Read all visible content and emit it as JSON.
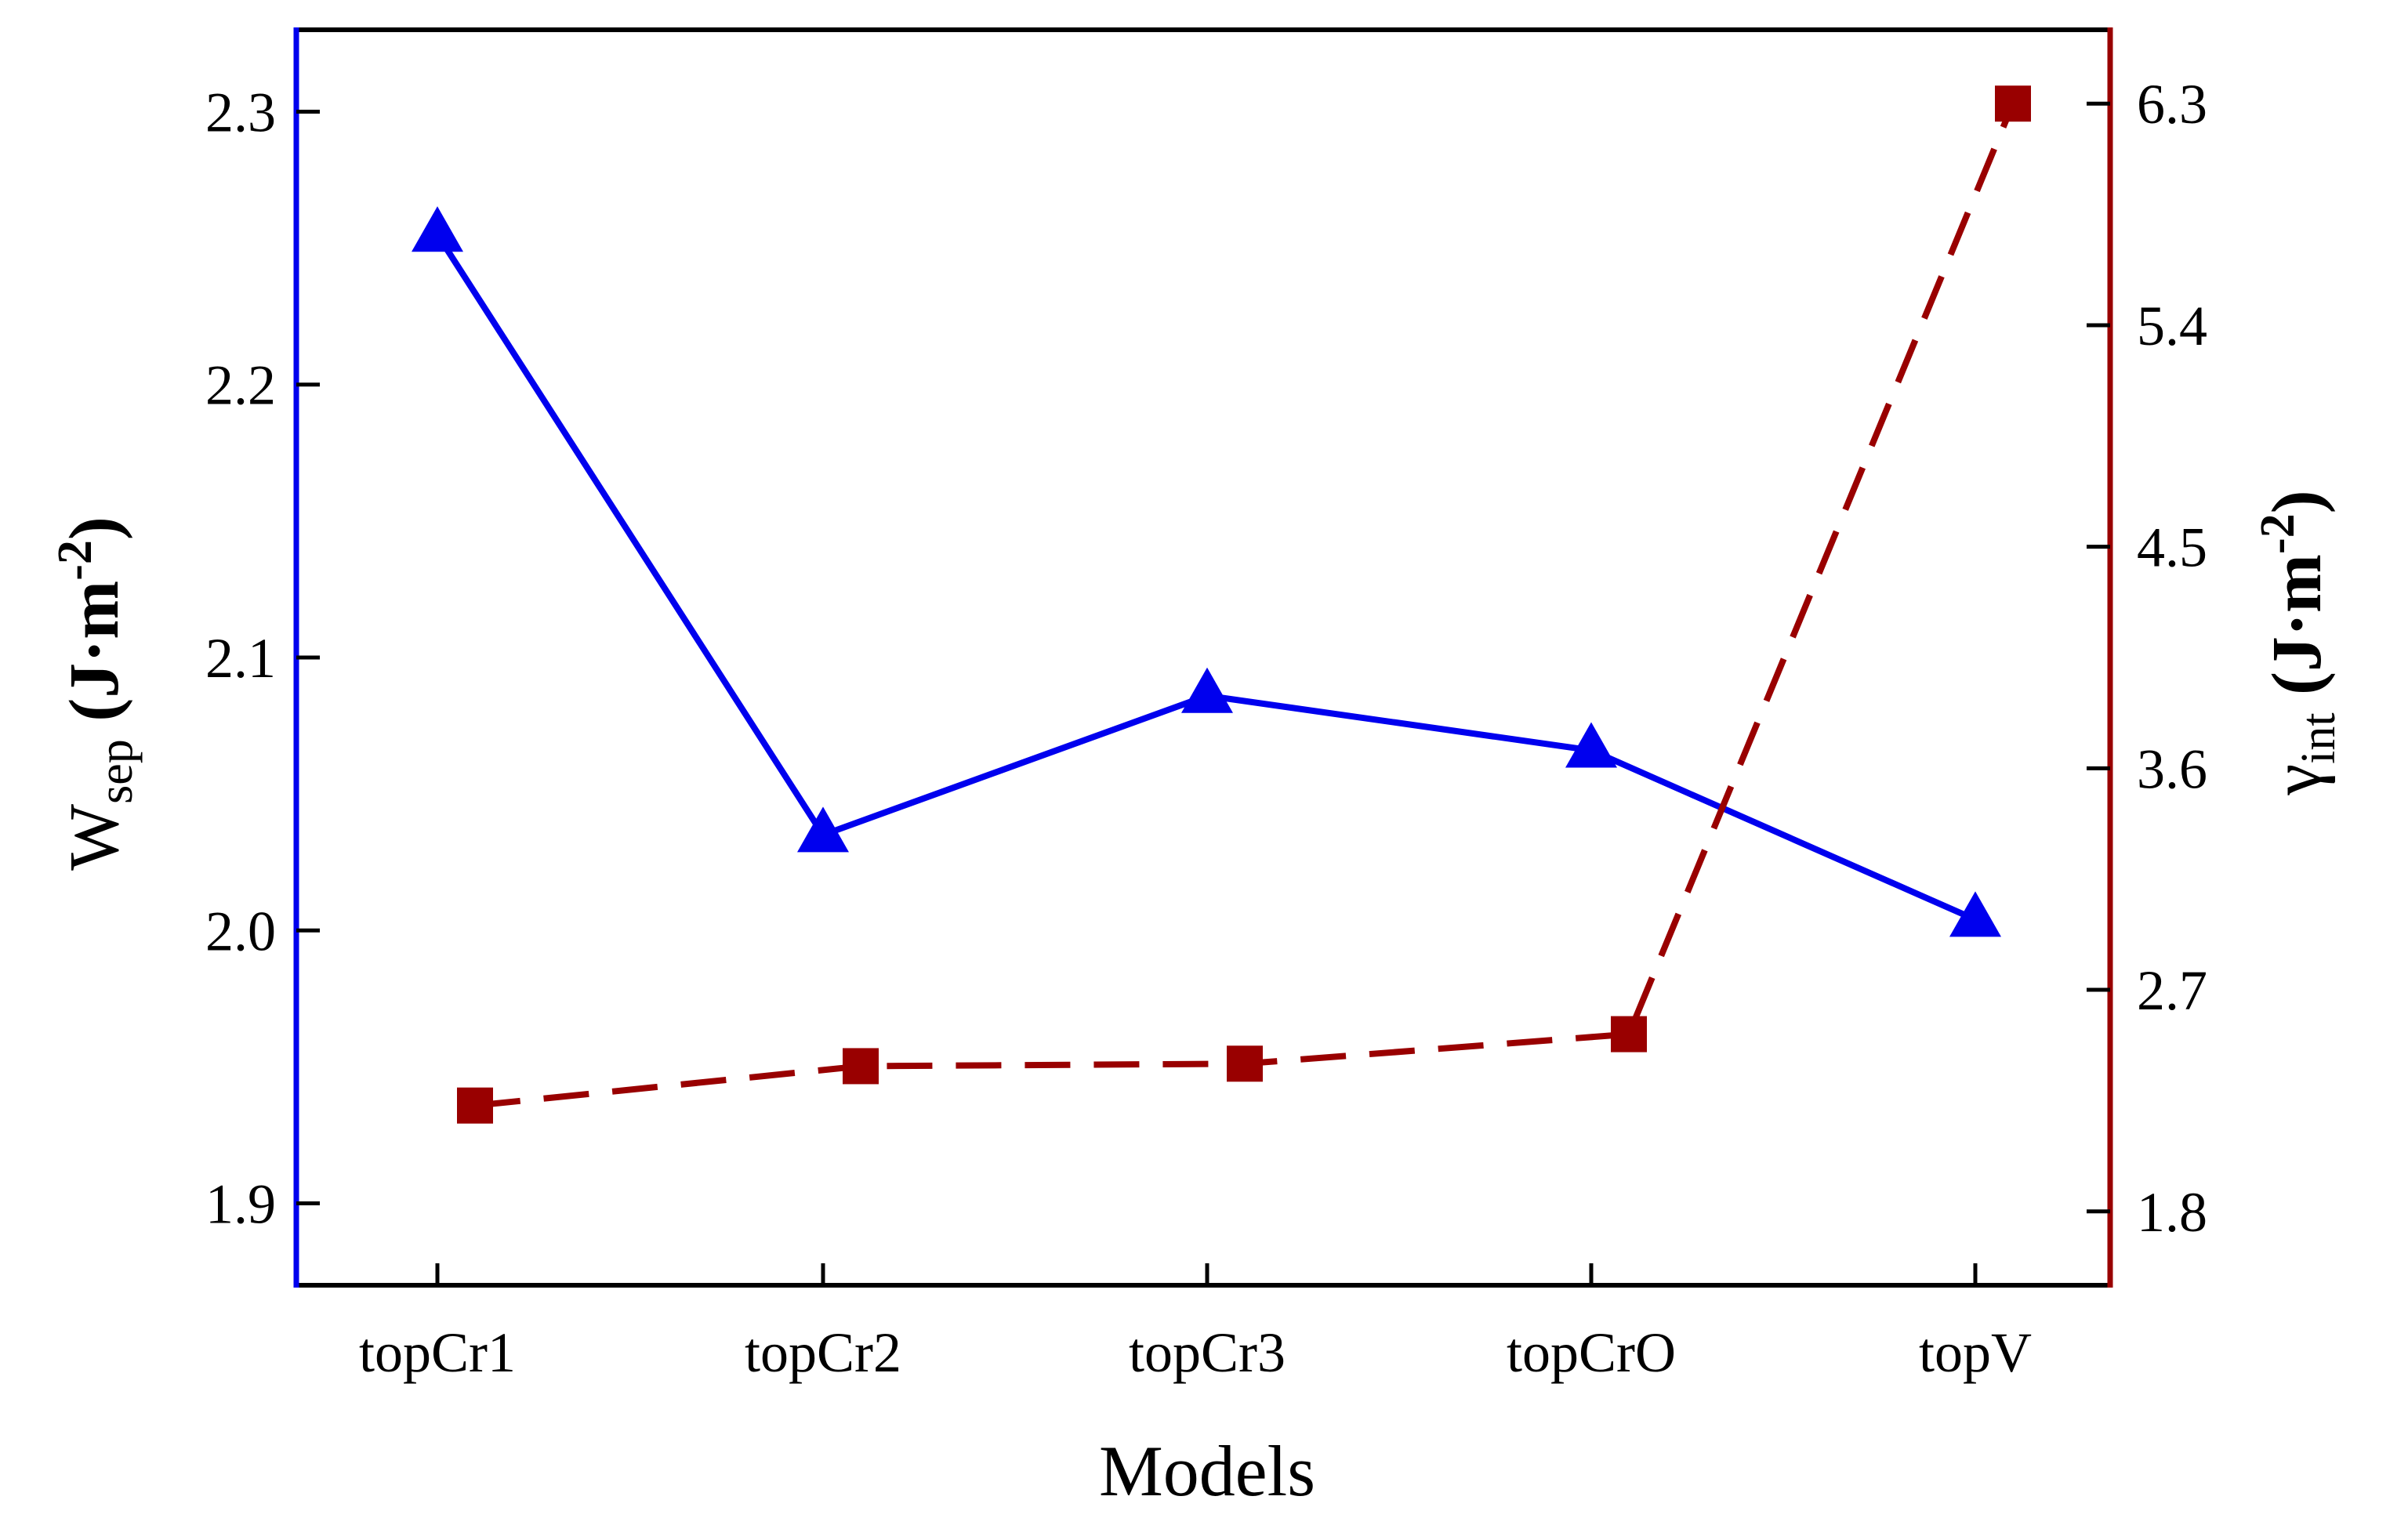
{
  "chart_data": {
    "type": "line",
    "xlabel": "Models",
    "categories": [
      "topCr1",
      "topCr2",
      "topCr3",
      "topCrO",
      "topV"
    ],
    "left_axis": {
      "label_main": "W",
      "label_sub": "sep",
      "label_unit": " (J·m",
      "label_exp": "-2",
      "label_close": ")",
      "ylim": [
        1.87,
        2.33
      ],
      "ticks": [
        "1.9",
        "2.0",
        "2.1",
        "2.2",
        "2.3"
      ],
      "color": "#0000ee"
    },
    "right_axis": {
      "label_main": "γ",
      "label_sub": "int",
      "label_unit": " (J·m",
      "label_exp": "-2",
      "label_close": ")",
      "ylim": [
        1.5,
        6.6
      ],
      "ticks": [
        "1.8",
        "2.7",
        "3.6",
        "4.5",
        "5.4",
        "6.3"
      ],
      "color": "#990000"
    },
    "series": [
      {
        "name": "Wsep",
        "axis": "left",
        "marker": "triangle",
        "line_style": "solid",
        "color": "#0000ee",
        "values": [
          2.255,
          2.035,
          2.086,
          2.066,
          2.004
        ]
      },
      {
        "name": "γint",
        "axis": "right",
        "marker": "square",
        "line_style": "dashed",
        "color": "#990000",
        "values": [
          2.23,
          2.39,
          2.4,
          2.52,
          6.3
        ]
      }
    ]
  }
}
